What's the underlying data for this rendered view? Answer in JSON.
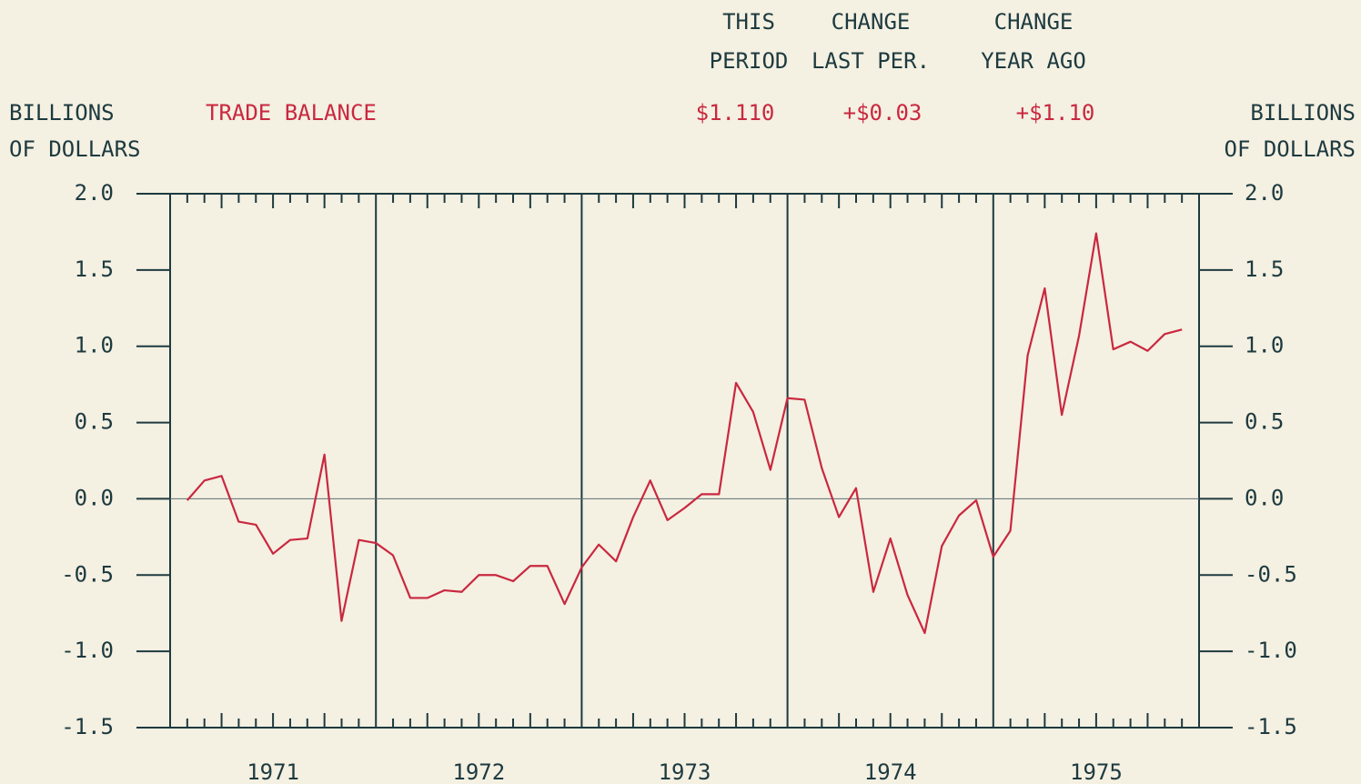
{
  "chart_data": {
    "type": "line",
    "title": "TRADE BALANCE",
    "y_label": [
      "BILLIONS",
      "OF DOLLARS"
    ],
    "y2_label": [
      "BILLIONS",
      "OF DOLLARS"
    ],
    "summary": {
      "headers": [
        [
          "THIS",
          "PERIOD"
        ],
        [
          "CHANGE",
          "LAST PER."
        ],
        [
          "CHANGE",
          "YEAR AGO"
        ]
      ],
      "values": [
        "$1.110",
        "+$0.03",
        "+$1.10"
      ]
    },
    "categories": [
      "1971",
      "1972",
      "1973",
      "1974",
      "1975"
    ],
    "xlim": [
      1971,
      1976
    ],
    "ylim": [
      -1.5,
      2.0
    ],
    "yticks": [
      {
        "value": -1.5,
        "label": "-1.5"
      },
      {
        "value": -1.0,
        "label": "-1.0"
      },
      {
        "value": -0.5,
        "label": "-0.5"
      },
      {
        "value": 0,
        "label": "0.0"
      },
      {
        "value": 0.5,
        "label": "0.5"
      },
      {
        "value": 1.0,
        "label": "1.0"
      },
      {
        "value": 1.5,
        "label": "1.5"
      },
      {
        "value": 2.0,
        "label": "2.0"
      }
    ],
    "series": [
      {
        "name": "TRADE BALANCE",
        "color": "#c9283f",
        "x": [
          1971.083,
          1971.167,
          1971.25,
          1971.333,
          1971.417,
          1971.5,
          1971.583,
          1971.667,
          1971.75,
          1971.833,
          1971.917,
          1972.0,
          1972.083,
          1972.167,
          1972.25,
          1972.333,
          1972.417,
          1972.5,
          1972.583,
          1972.667,
          1972.75,
          1972.833,
          1972.917,
          1973.0,
          1973.083,
          1973.167,
          1973.25,
          1973.333,
          1973.417,
          1973.5,
          1973.583,
          1973.667,
          1973.75,
          1973.833,
          1973.917,
          1974.0,
          1974.083,
          1974.167,
          1974.25,
          1974.333,
          1974.417,
          1974.5,
          1974.583,
          1974.667,
          1974.75,
          1974.833,
          1974.917,
          1975.0,
          1975.083,
          1975.167,
          1975.25,
          1975.333,
          1975.417,
          1975.5,
          1975.583,
          1975.667,
          1975.75,
          1975.833,
          1975.917
        ],
        "values": [
          -0.01,
          0.12,
          0.15,
          -0.15,
          -0.17,
          -0.36,
          -0.27,
          -0.26,
          0.29,
          -0.8,
          -0.27,
          -0.29,
          -0.37,
          -0.65,
          -0.65,
          -0.6,
          -0.61,
          -0.5,
          -0.5,
          -0.54,
          -0.44,
          -0.44,
          -0.69,
          -0.45,
          -0.3,
          -0.41,
          -0.12,
          0.12,
          -0.14,
          -0.06,
          0.03,
          0.03,
          0.76,
          0.57,
          0.19,
          0.66,
          0.65,
          0.2,
          -0.12,
          0.07,
          -0.61,
          -0.26,
          -0.63,
          -0.88,
          -0.31,
          -0.11,
          -0.01,
          -0.38,
          -0.21,
          0.94,
          1.38,
          0.55,
          1.07,
          1.74,
          0.98,
          1.03,
          0.97,
          1.08,
          1.11
        ]
      }
    ]
  }
}
